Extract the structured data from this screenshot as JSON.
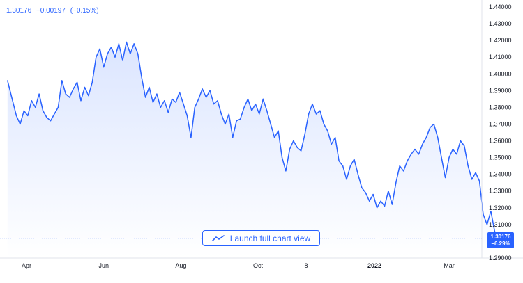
{
  "quote": {
    "price": "1.30176",
    "change": "−0.00197",
    "change_pct": "(−0.15%)"
  },
  "launch_button": {
    "label": "Launch full chart view",
    "icon": "line-chart-icon"
  },
  "price_badge": {
    "price": "1.30176",
    "change_pct": "−6.29%"
  },
  "colors": {
    "line": "#2962ff",
    "fill_top": "#dbe5ff",
    "fill_bottom": "#ffffff",
    "text": "#131722",
    "axis": "#e0e3eb"
  },
  "chart_data": {
    "type": "area",
    "title": "",
    "xlabel": "",
    "ylabel": "",
    "grid": false,
    "ylim": [
      1.29,
      1.44
    ],
    "y_ticks": [
      "1.44000",
      "1.43000",
      "1.42000",
      "1.41000",
      "1.40000",
      "1.39000",
      "1.38000",
      "1.37000",
      "1.36000",
      "1.35000",
      "1.34000",
      "1.33000",
      "1.32000",
      "1.31000",
      "1.29000"
    ],
    "x_tick_labels": [
      "Apr",
      "Jun",
      "Aug",
      "Oct",
      "8",
      "2022",
      "Mar"
    ],
    "x_tick_dates": [
      "2021-04-01",
      "2021-06-01",
      "2021-08-01",
      "2021-10-01",
      "2021-11-08",
      "2022-01-01",
      "2022-03-01"
    ],
    "series": [
      {
        "values": [
          [
            "2021-03-17",
            1.396
          ],
          [
            "2021-03-20",
            1.387
          ],
          [
            "2021-03-24",
            1.375
          ],
          [
            "2021-03-27",
            1.37
          ],
          [
            "2021-03-30",
            1.378
          ],
          [
            "2021-04-02",
            1.375
          ],
          [
            "2021-04-05",
            1.384
          ],
          [
            "2021-04-08",
            1.38
          ],
          [
            "2021-04-11",
            1.388
          ],
          [
            "2021-04-14",
            1.378
          ],
          [
            "2021-04-17",
            1.374
          ],
          [
            "2021-04-20",
            1.372
          ],
          [
            "2021-04-23",
            1.376
          ],
          [
            "2021-04-26",
            1.38
          ],
          [
            "2021-04-29",
            1.396
          ],
          [
            "2021-05-02",
            1.388
          ],
          [
            "2021-05-05",
            1.386
          ],
          [
            "2021-05-08",
            1.391
          ],
          [
            "2021-05-11",
            1.395
          ],
          [
            "2021-05-14",
            1.384
          ],
          [
            "2021-05-17",
            1.392
          ],
          [
            "2021-05-20",
            1.387
          ],
          [
            "2021-05-23",
            1.395
          ],
          [
            "2021-05-26",
            1.41
          ],
          [
            "2021-05-29",
            1.415
          ],
          [
            "2021-06-01",
            1.404
          ],
          [
            "2021-06-04",
            1.412
          ],
          [
            "2021-06-07",
            1.416
          ],
          [
            "2021-06-10",
            1.41
          ],
          [
            "2021-06-13",
            1.418
          ],
          [
            "2021-06-16",
            1.408
          ],
          [
            "2021-06-19",
            1.419
          ],
          [
            "2021-06-22",
            1.412
          ],
          [
            "2021-06-25",
            1.418
          ],
          [
            "2021-06-28",
            1.412
          ],
          [
            "2021-07-01",
            1.398
          ],
          [
            "2021-07-04",
            1.386
          ],
          [
            "2021-07-07",
            1.392
          ],
          [
            "2021-07-10",
            1.383
          ],
          [
            "2021-07-13",
            1.388
          ],
          [
            "2021-07-16",
            1.38
          ],
          [
            "2021-07-19",
            1.384
          ],
          [
            "2021-07-22",
            1.377
          ],
          [
            "2021-07-25",
            1.385
          ],
          [
            "2021-07-28",
            1.383
          ],
          [
            "2021-07-31",
            1.389
          ],
          [
            "2021-08-03",
            1.382
          ],
          [
            "2021-08-06",
            1.375
          ],
          [
            "2021-08-09",
            1.362
          ],
          [
            "2021-08-12",
            1.38
          ],
          [
            "2021-08-15",
            1.385
          ],
          [
            "2021-08-18",
            1.391
          ],
          [
            "2021-08-21",
            1.386
          ],
          [
            "2021-08-24",
            1.39
          ],
          [
            "2021-08-27",
            1.382
          ],
          [
            "2021-08-30",
            1.384
          ],
          [
            "2021-09-02",
            1.376
          ],
          [
            "2021-09-05",
            1.37
          ],
          [
            "2021-09-08",
            1.376
          ],
          [
            "2021-09-11",
            1.362
          ],
          [
            "2021-09-14",
            1.372
          ],
          [
            "2021-09-17",
            1.373
          ],
          [
            "2021-09-20",
            1.38
          ],
          [
            "2021-09-23",
            1.385
          ],
          [
            "2021-09-26",
            1.378
          ],
          [
            "2021-09-29",
            1.382
          ],
          [
            "2021-10-02",
            1.376
          ],
          [
            "2021-10-05",
            1.385
          ],
          [
            "2021-10-08",
            1.378
          ],
          [
            "2021-10-11",
            1.37
          ],
          [
            "2021-10-14",
            1.362
          ],
          [
            "2021-10-17",
            1.366
          ],
          [
            "2021-10-20",
            1.35
          ],
          [
            "2021-10-23",
            1.342
          ],
          [
            "2021-10-26",
            1.355
          ],
          [
            "2021-10-29",
            1.36
          ],
          [
            "2021-11-01",
            1.356
          ],
          [
            "2021-11-04",
            1.354
          ],
          [
            "2021-11-07",
            1.364
          ],
          [
            "2021-11-10",
            1.376
          ],
          [
            "2021-11-13",
            1.382
          ],
          [
            "2021-11-16",
            1.376
          ],
          [
            "2021-11-19",
            1.378
          ],
          [
            "2021-11-22",
            1.37
          ],
          [
            "2021-11-25",
            1.366
          ],
          [
            "2021-11-28",
            1.358
          ],
          [
            "2021-12-01",
            1.362
          ],
          [
            "2021-12-04",
            1.348
          ],
          [
            "2021-12-07",
            1.345
          ],
          [
            "2021-12-10",
            1.337
          ],
          [
            "2021-12-13",
            1.345
          ],
          [
            "2021-12-16",
            1.349
          ],
          [
            "2021-12-19",
            1.34
          ],
          [
            "2021-12-22",
            1.332
          ],
          [
            "2021-12-25",
            1.329
          ],
          [
            "2021-12-28",
            1.324
          ],
          [
            "2021-12-31",
            1.328
          ],
          [
            "2022-01-03",
            1.32
          ],
          [
            "2022-01-06",
            1.324
          ],
          [
            "2022-01-09",
            1.321
          ],
          [
            "2022-01-12",
            1.33
          ],
          [
            "2022-01-15",
            1.322
          ],
          [
            "2022-01-18",
            1.335
          ],
          [
            "2022-01-21",
            1.345
          ],
          [
            "2022-01-24",
            1.342
          ],
          [
            "2022-01-27",
            1.348
          ],
          [
            "2022-01-30",
            1.352
          ],
          [
            "2022-02-02",
            1.355
          ],
          [
            "2022-02-05",
            1.352
          ],
          [
            "2022-02-08",
            1.358
          ],
          [
            "2022-02-11",
            1.362
          ],
          [
            "2022-02-14",
            1.368
          ],
          [
            "2022-02-17",
            1.37
          ],
          [
            "2022-02-20",
            1.362
          ],
          [
            "2022-02-23",
            1.35
          ],
          [
            "2022-02-26",
            1.338
          ],
          [
            "2022-03-01",
            1.35
          ],
          [
            "2022-03-04",
            1.355
          ],
          [
            "2022-03-07",
            1.352
          ],
          [
            "2022-03-10",
            1.36
          ],
          [
            "2022-03-13",
            1.357
          ],
          [
            "2022-03-16",
            1.345
          ],
          [
            "2022-03-19",
            1.337
          ],
          [
            "2022-03-22",
            1.341
          ],
          [
            "2022-03-25",
            1.336
          ],
          [
            "2022-03-28",
            1.316
          ],
          [
            "2022-03-31",
            1.31
          ],
          [
            "2022-04-03",
            1.318
          ],
          [
            "2022-04-06",
            1.306
          ],
          [
            "2022-04-09",
            1.302
          ]
        ]
      }
    ],
    "last_value": 1.30176
  }
}
